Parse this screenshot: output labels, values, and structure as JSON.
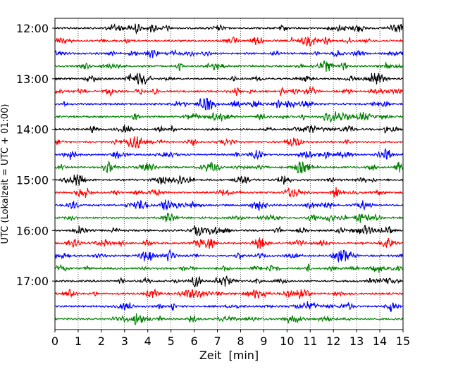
{
  "chart_data": {
    "type": "line",
    "title": "",
    "xlabel": "Zeit  [min]",
    "ylabel": "UTC (Lokalzeit = UTC + 01:00)",
    "xlim": [
      0,
      15
    ],
    "x_ticks": [
      "0",
      "1",
      "2",
      "3",
      "4",
      "5",
      "6",
      "7",
      "8",
      "9",
      "10",
      "11",
      "12",
      "13",
      "14",
      "15"
    ],
    "y_tick_labels": [
      "12:00",
      "13:00",
      "14:00",
      "15:00",
      "16:00",
      "17:00"
    ],
    "grid": "vertical dotted at every minute",
    "trace_interval_min": 15,
    "trace_colors": [
      "#000000",
      "#ff0000",
      "#0000ff",
      "#008000"
    ],
    "traces": [
      "12:00",
      "12:15",
      "12:30",
      "12:45",
      "13:00",
      "13:15",
      "13:30",
      "13:45",
      "14:00",
      "14:15",
      "14:30",
      "14:45",
      "15:00",
      "15:15",
      "15:30",
      "15:45",
      "16:00",
      "16:15",
      "16:30",
      "16:45",
      "17:00",
      "17:15",
      "17:30",
      "17:45"
    ]
  }
}
